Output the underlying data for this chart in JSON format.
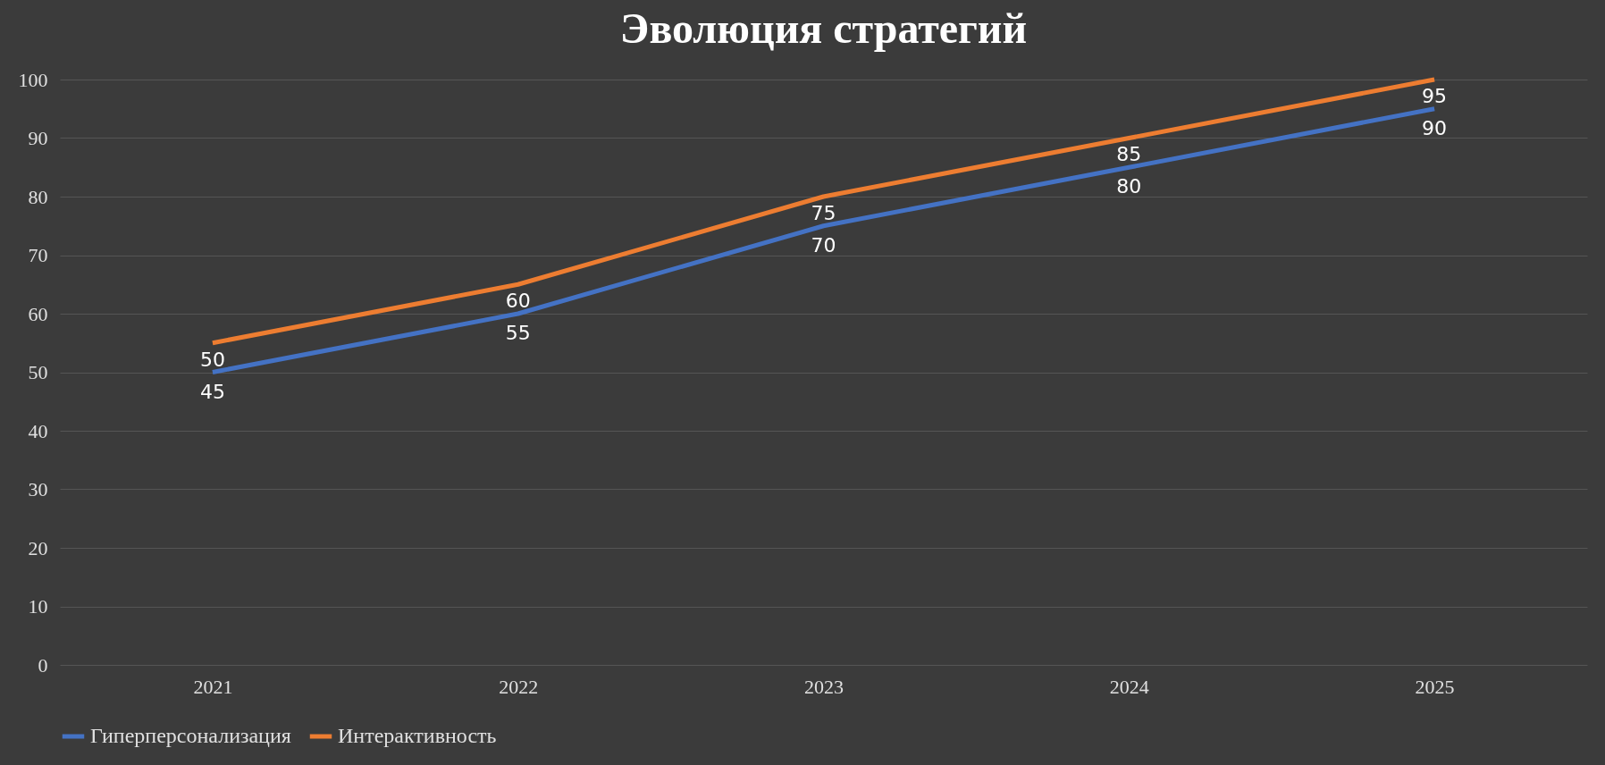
{
  "chart_data": {
    "type": "line",
    "title": "Эволюция стратегий",
    "categories": [
      "2021",
      "2022",
      "2023",
      "2024",
      "2025"
    ],
    "series": [
      {
        "name": "Гиперперсонализация",
        "color": "#4472c4",
        "values": [
          50,
          60,
          75,
          85,
          95
        ],
        "value_labels": [
          "50",
          "60",
          "75",
          "85",
          "95"
        ]
      },
      {
        "name": "Интерактивность",
        "color": "#ed7d31",
        "values": [
          55,
          65,
          80,
          90,
          100
        ]
      }
    ],
    "ylim": [
      0,
      100
    ],
    "yticks": [
      0,
      10,
      20,
      30,
      40,
      50,
      60,
      70,
      80,
      90,
      100
    ],
    "grid": "y",
    "legend": "bottom",
    "marker": "none",
    "line_style": "solid",
    "annotations": [
      "45",
      "55",
      "70",
      "80",
      "90"
    ]
  }
}
